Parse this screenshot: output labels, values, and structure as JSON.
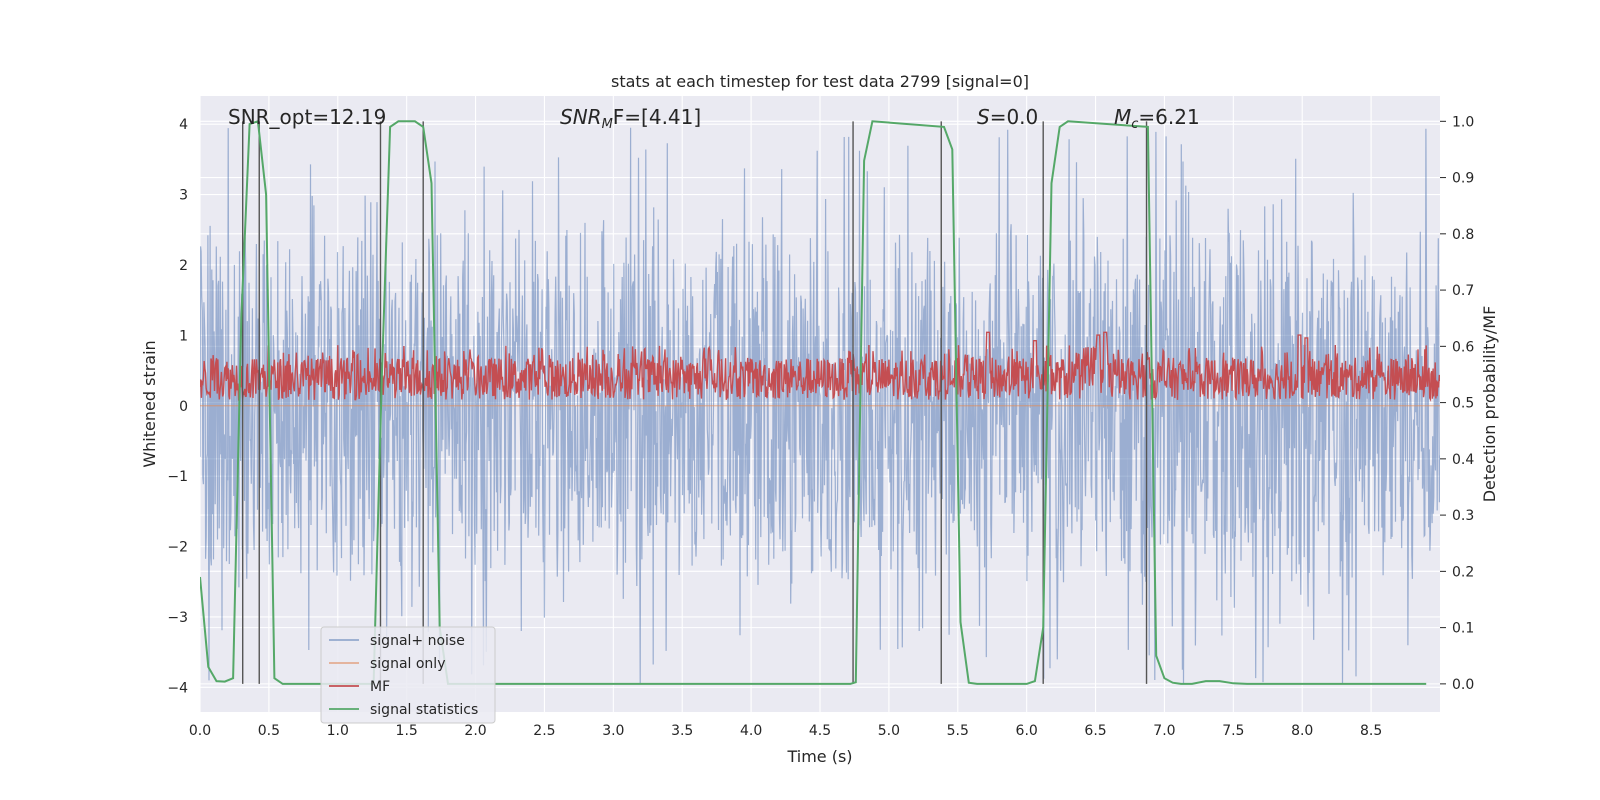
{
  "chart_data": {
    "type": "line",
    "title": "stats at each timestep for test data 2799 [signal=0]",
    "xlabel": "Time (s)",
    "ylabel": "Whitened strain",
    "ylabel_right": "Detection probability/MF",
    "xlim": [
      0.0,
      9.0
    ],
    "ylim": [
      -4.35,
      4.4
    ],
    "ylim_right": [
      -0.05,
      1.045
    ],
    "x_ticks": [
      "0.0",
      "0.5",
      "1.0",
      "1.5",
      "2.0",
      "2.5",
      "3.0",
      "3.5",
      "4.0",
      "4.5",
      "5.0",
      "5.5",
      "6.0",
      "6.5",
      "7.0",
      "7.5",
      "8.0",
      "8.5"
    ],
    "y_ticks": [
      "4",
      "3",
      "2",
      "1",
      "0",
      "−1",
      "−2",
      "−3",
      "−4"
    ],
    "y_ticks_right": [
      "1.0",
      "0.9",
      "0.8",
      "0.7",
      "0.6",
      "0.5",
      "0.4",
      "0.3",
      "0.2",
      "0.1",
      "0.0"
    ],
    "grid": true,
    "legend_position": "lower-left",
    "annotations": {
      "snr_opt": "SNR_opt=12.19",
      "snr_mf_italic": "SNR",
      "snr_mf_sub": "M",
      "snr_mf_rest": "F=[4.41]",
      "s_italic": "S",
      "s_rest": "=0.0",
      "mc_italic": "M",
      "mc_sub": "c",
      "mc_rest": "=6.21"
    },
    "series": [
      {
        "name": "signal+ noise",
        "axis": "left",
        "color": "#4c72b0",
        "description": "dense whitened noise trace, amplitude roughly within -3.8 to 4.0",
        "envelope": {
          "p_max": 2.5,
          "p_min": -2.5,
          "extreme_max": 4.0,
          "extreme_min": -3.95
        }
      },
      {
        "name": "signal only",
        "axis": "left",
        "color": "#dd8452",
        "x": [
          0.0,
          9.0
        ],
        "values": [
          0.0,
          0.0
        ]
      },
      {
        "name": "MF",
        "axis": "right",
        "color": "#c44e52",
        "description": "matched filter output fluctuating around 0.53 to 0.60",
        "baseline": 0.505,
        "typical_peak": 0.58,
        "bumps": [
          {
            "x": 5.72,
            "value": 0.625
          },
          {
            "x": 6.06,
            "value": 0.61
          },
          {
            "x": 6.52,
            "value": 0.62
          },
          {
            "x": 6.57,
            "value": 0.625
          },
          {
            "x": 7.98,
            "value": 0.62
          },
          {
            "x": 8.03,
            "value": 0.615
          }
        ]
      },
      {
        "name": "signal statistics",
        "axis": "right",
        "color": "#55a868",
        "x": [
          0.0,
          0.06,
          0.12,
          0.18,
          0.24,
          0.3,
          0.36,
          0.42,
          0.48,
          0.54,
          0.6,
          0.66,
          0.72,
          1.26,
          1.32,
          1.38,
          1.44,
          1.5,
          1.56,
          1.62,
          1.68,
          1.74,
          1.8,
          1.86,
          1.92,
          4.72,
          4.76,
          4.82,
          4.88,
          5.4,
          5.46,
          5.52,
          5.58,
          5.64,
          5.7,
          6.0,
          6.06,
          6.12,
          6.18,
          6.24,
          6.3,
          6.88,
          6.94,
          7.0,
          7.06,
          7.12,
          7.2,
          7.3,
          7.4,
          7.5,
          7.6,
          8.9
        ],
        "values": [
          0.19,
          0.03,
          0.005,
          0.004,
          0.01,
          0.65,
          0.995,
          1.0,
          0.87,
          0.01,
          0.0,
          0.0,
          0.0,
          0.0,
          0.55,
          0.99,
          1.0,
          1.0,
          1.0,
          0.99,
          0.89,
          0.1,
          0.0,
          0.0,
          0.0,
          0.0,
          0.003,
          0.93,
          1.0,
          0.99,
          0.95,
          0.11,
          0.002,
          0.0,
          0.0,
          0.0,
          0.005,
          0.1,
          0.89,
          0.99,
          1.0,
          0.99,
          0.05,
          0.01,
          0.002,
          0.0,
          0.0,
          0.005,
          0.005,
          0.001,
          0.0,
          0.0
        ]
      }
    ],
    "vertical_lines": [
      {
        "x": 0.31,
        "ymin": 0.0,
        "ymax": 1.0
      },
      {
        "x": 0.43,
        "ymin": 0.0,
        "ymax": 1.0
      },
      {
        "x": 1.31,
        "ymin": 0.0,
        "ymax": 1.0
      },
      {
        "x": 1.62,
        "ymin": 0.0,
        "ymax": 1.0
      },
      {
        "x": 4.74,
        "ymin": 0.0,
        "ymax": 1.0
      },
      {
        "x": 5.38,
        "ymin": 0.0,
        "ymax": 1.0
      },
      {
        "x": 6.12,
        "ymin": 0.0,
        "ymax": 1.0
      },
      {
        "x": 6.87,
        "ymin": 0.0,
        "ymax": 1.0
      }
    ]
  }
}
